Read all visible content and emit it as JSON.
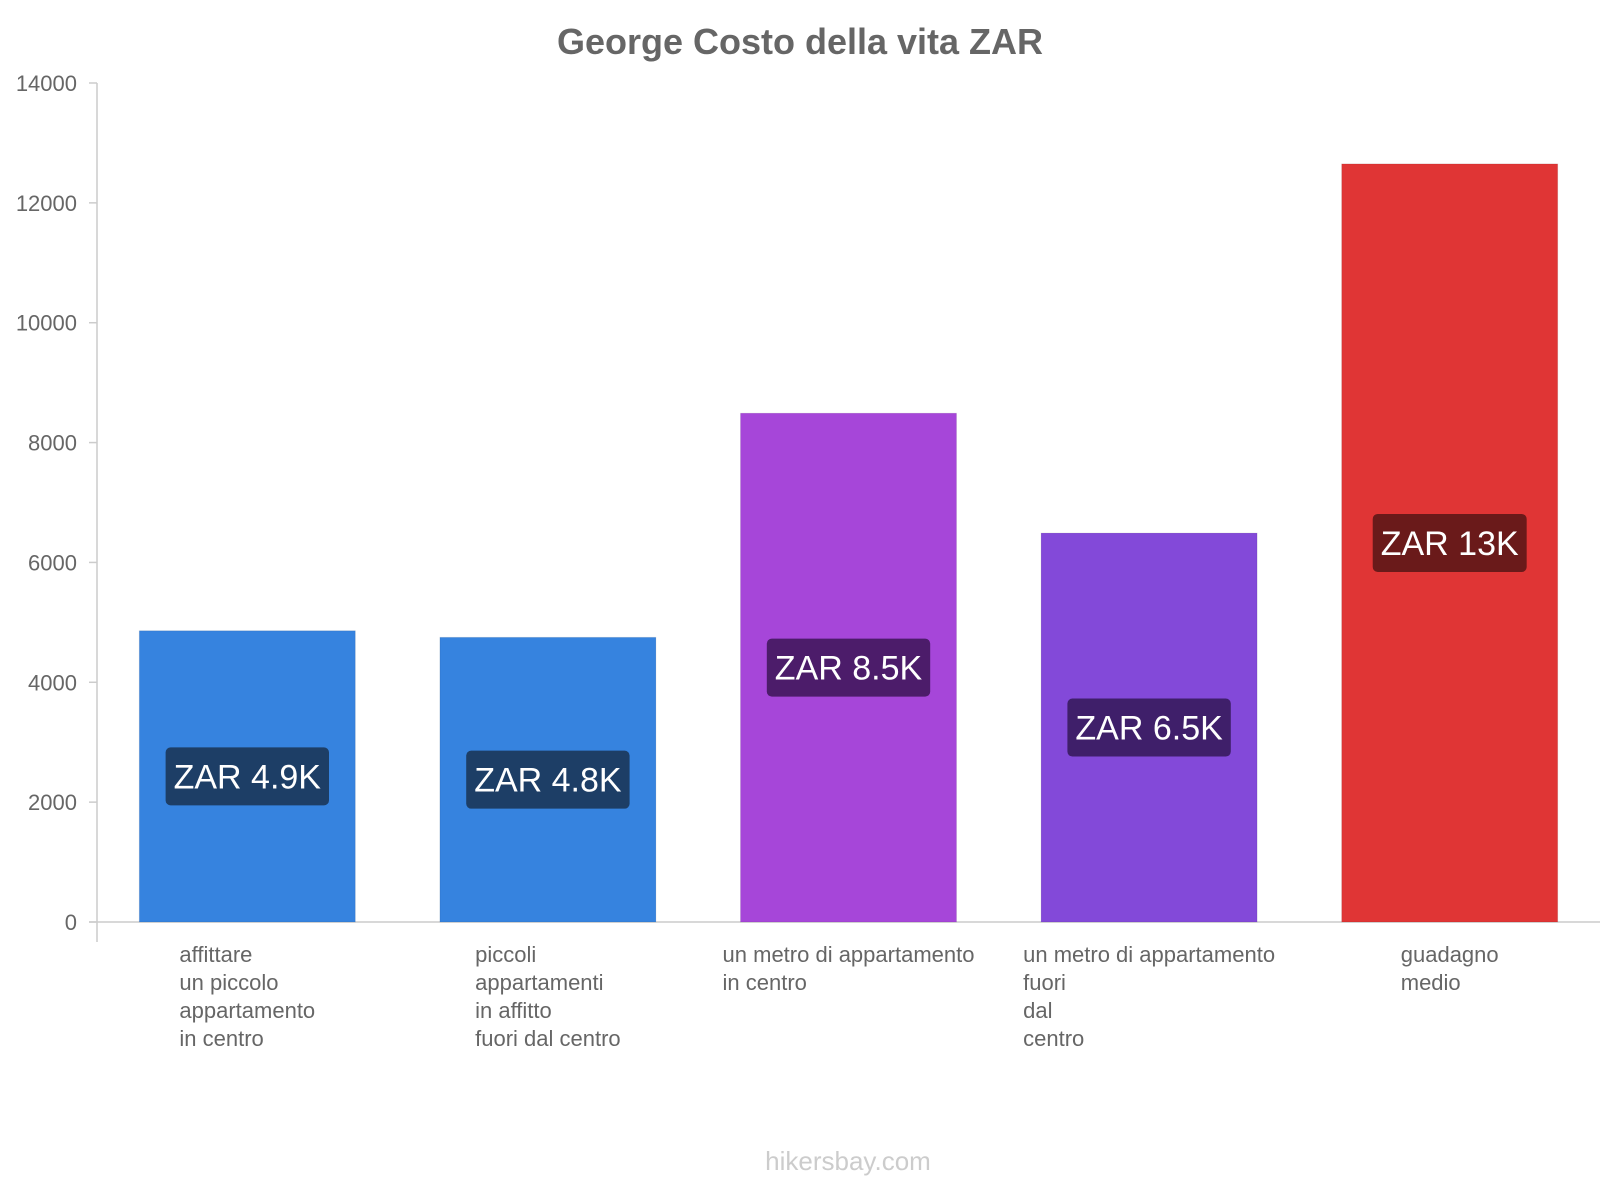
{
  "chart_data": {
    "type": "bar",
    "title": "George Costo della vita ZAR",
    "xlabel": "",
    "ylabel": "",
    "ylim": [
      0,
      14000
    ],
    "yticks": [
      0,
      2000,
      4000,
      6000,
      8000,
      10000,
      12000,
      14000
    ],
    "grid": false,
    "categories": [
      [
        "affittare",
        "un piccolo",
        "appartamento",
        "in centro"
      ],
      [
        "piccoli",
        "appartamenti",
        "in affitto",
        "fuori dal centro"
      ],
      [
        "un metro di appartamento",
        "in centro"
      ],
      [
        "un metro di appartamento",
        "fuori",
        "dal",
        "centro"
      ],
      [
        "guadagno",
        "medio"
      ]
    ],
    "values": [
      4860,
      4750,
      8490,
      6490,
      12650
    ],
    "data_labels": [
      "ZAR 4.9K",
      "ZAR 4.8K",
      "ZAR 8.5K",
      "ZAR 6.5K",
      "ZAR 13K"
    ],
    "colors": [
      "#3683df",
      "#3683df",
      "#a646d9",
      "#8349d9",
      "#e03535"
    ],
    "label_bg_colors": [
      "#1d3e66",
      "#1d3e66",
      "#4c1c6a",
      "#3f1f6a",
      "#6a1a1a"
    ],
    "bar_names": [
      "affittare-piccolo-appartamento-centro",
      "piccoli-appartamenti-fuori-centro",
      "metro-appartamento-centro",
      "metro-appartamento-fuori-centro",
      "guadagno-medio"
    ]
  },
  "footer": {
    "watermark": "hikersbay.com"
  }
}
